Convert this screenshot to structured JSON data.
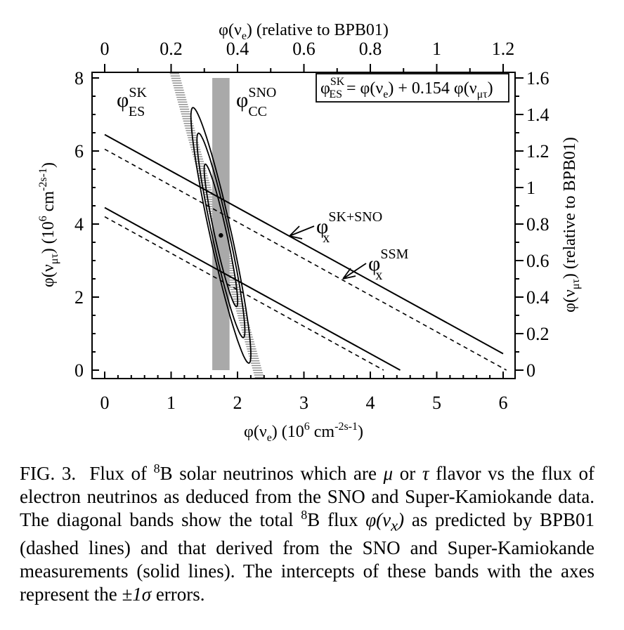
{
  "chart_data": {
    "type": "line",
    "x_axis": {
      "label": "φ(ν_e) (10^6 cm^-2 s^-1)",
      "range": [
        -0.2,
        6.25
      ],
      "ticks": [
        0,
        1,
        2,
        3,
        4,
        5,
        6
      ]
    },
    "y_axis": {
      "label": "φ(ν_μτ) (10^6 cm^-2 s^-1)",
      "range": [
        -0.25,
        8.25
      ],
      "ticks": [
        0,
        2,
        4,
        6,
        8
      ]
    },
    "top_axis": {
      "label": "φ(ν_e) (relative to BPB01)",
      "ticks": [
        0,
        0.2,
        0.4,
        0.6,
        0.8,
        1,
        1.2
      ],
      "tick_labels": [
        "0",
        "0.2",
        "0.4",
        "0.6",
        "0.8",
        "1",
        "1.2"
      ]
    },
    "right_axis": {
      "label": "φ(ν_μτ) (relative to BPB01)",
      "ticks": [
        0,
        0.2,
        0.4,
        0.6,
        0.8,
        1,
        1.2,
        1.4,
        1.6
      ],
      "tick_labels": [
        "0",
        "0.2",
        "0.4",
        "0.6",
        "0.8",
        "1",
        "1.2",
        "1.4",
        "1.6"
      ]
    },
    "lines": [
      {
        "id": "sk_sno_upper",
        "style": "solid",
        "points": [
          [
            0,
            6.45
          ],
          [
            6,
            0.45
          ]
        ]
      },
      {
        "id": "sk_sno_lower",
        "style": "solid",
        "points": [
          [
            0,
            4.45
          ],
          [
            4.45,
            0
          ]
        ]
      },
      {
        "id": "ssm_upper",
        "style": "dashed",
        "points": [
          [
            0,
            6.05
          ],
          [
            6.05,
            0
          ]
        ]
      },
      {
        "id": "ssm_lower",
        "style": "dashed",
        "points": [
          [
            0,
            4.2
          ],
          [
            4.2,
            0
          ]
        ]
      }
    ],
    "sk_band": {
      "style": "hatched",
      "slope": -6.5,
      "center_x_at_y0": 2.3,
      "center_x_at_y8": 1.07,
      "half_width": 0.07
    },
    "sno_band": {
      "style": "gray",
      "x_range": [
        1.62,
        1.88
      ],
      "y_range": [
        0,
        8
      ]
    },
    "best_fit": {
      "x": 1.75,
      "y": 3.69
    },
    "contours": [
      {
        "cx": 1.75,
        "cy": 3.69,
        "x_half": 0.3,
        "y_half": 3.5
      },
      {
        "cx": 1.75,
        "cy": 3.69,
        "x_half": 0.24,
        "y_half": 2.8
      },
      {
        "cx": 1.75,
        "cy": 3.69,
        "x_half": 0.17,
        "y_half": 1.95
      }
    ],
    "annotations": {
      "sk_label": {
        "main": "φ",
        "sup": "SK",
        "sub": "ES"
      },
      "sno_label": {
        "main": "φ",
        "sup": "SNO",
        "sub": "CC"
      },
      "sksno_label": {
        "main": "φ",
        "sup": "SK+SNO",
        "sub": "x"
      },
      "ssm_label": {
        "main": "φ",
        "sup": "SSM",
        "sub": "x"
      },
      "formula": "φ_ES^SK = φ(ν_e) + 0.154 φ(ν_μτ)"
    }
  },
  "caption": {
    "fig": "FIG. 3.",
    "t1": "Flux of",
    "sup8": "8",
    "t2": "B solar neutrinos which are",
    "mu": "μ",
    "or": "or",
    "tau": "τ",
    "t3": "flavor vs the flux of electron neutrinos as deduced from the SNO and Super-Kamiokande data.  The diagonal bands show the total",
    "t4": "B flux",
    "phi": "φ(ν",
    "x": "x",
    "close": ")",
    "t5": "as predicted by BPB01 (dashed lines) and that derived from the SNO and Super-Kamiokande measurements (solid lines). The intercepts of these bands with the axes represent the",
    "pm": "±1σ",
    "t6": "errors."
  }
}
